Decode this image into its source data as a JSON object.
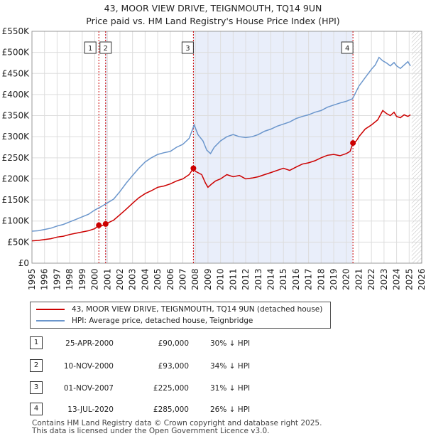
{
  "title": "43, MOOR VIEW DRIVE, TEIGNMOUTH, TQ14 9UN",
  "subtitle": "Price paid vs. HM Land Registry's House Price Index (HPI)",
  "colors": {
    "property": "#cc0000",
    "hpi": "#6b96cc",
    "shade": "#e9eefa",
    "marker_line": "#cc0000"
  },
  "chart_data": {
    "type": "line",
    "x_range": [
      1995,
      2026
    ],
    "y_range": [
      0,
      550000
    ],
    "y_ticks": [
      0,
      50000,
      100000,
      150000,
      200000,
      250000,
      300000,
      350000,
      400000,
      450000,
      500000,
      550000
    ],
    "y_tick_labels": [
      "£0",
      "£50K",
      "£100K",
      "£150K",
      "£200K",
      "£250K",
      "£300K",
      "£350K",
      "£400K",
      "£450K",
      "£500K",
      "£550K"
    ],
    "x_ticks": [
      1995,
      1996,
      1997,
      1998,
      1999,
      2000,
      2001,
      2002,
      2003,
      2004,
      2005,
      2006,
      2007,
      2008,
      2009,
      2010,
      2011,
      2012,
      2013,
      2014,
      2015,
      2016,
      2017,
      2018,
      2019,
      2020,
      2021,
      2022,
      2023,
      2024,
      2025,
      2026
    ],
    "grid": true,
    "shaded_periods": [
      [
        2000.83,
        2001.0
      ],
      [
        2007.83,
        2020.5
      ]
    ],
    "future_hatch_from": 2025.2,
    "series": [
      {
        "name": "43, MOOR VIEW DRIVE, TEIGNMOUTH, TQ14 9UN (detached house)",
        "color": "#cc0000",
        "x": [
          1995.0,
          1995.5,
          1996.0,
          1996.5,
          1997.0,
          1997.5,
          1998.0,
          1998.5,
          1999.0,
          1999.5,
          2000.0,
          2000.32,
          2000.5,
          2000.86,
          2001.0,
          2001.5,
          2002.0,
          2002.5,
          2003.0,
          2003.5,
          2004.0,
          2004.5,
          2005.0,
          2005.5,
          2006.0,
          2006.5,
          2007.0,
          2007.5,
          2007.84,
          2008.0,
          2008.5,
          2008.8,
          2009.0,
          2009.3,
          2009.6,
          2010.0,
          2010.5,
          2011.0,
          2011.5,
          2012.0,
          2012.5,
          2013.0,
          2013.5,
          2014.0,
          2014.5,
          2015.0,
          2015.5,
          2016.0,
          2016.5,
          2017.0,
          2017.5,
          2018.0,
          2018.5,
          2019.0,
          2019.5,
          2020.0,
          2020.3,
          2020.53,
          2020.8,
          2021.0,
          2021.5,
          2022.0,
          2022.5,
          2022.9,
          2023.2,
          2023.5,
          2023.8,
          2024.0,
          2024.3,
          2024.6,
          2024.9,
          2025.1
        ],
        "values": [
          53000,
          54000,
          56000,
          58000,
          62000,
          64000,
          68000,
          71000,
          74000,
          77000,
          82000,
          90000,
          88000,
          93000,
          95000,
          102000,
          115000,
          128000,
          142000,
          155000,
          165000,
          172000,
          180000,
          183000,
          188000,
          195000,
          200000,
          210000,
          225000,
          218000,
          210000,
          190000,
          180000,
          188000,
          195000,
          200000,
          210000,
          205000,
          208000,
          200000,
          202000,
          205000,
          210000,
          215000,
          220000,
          225000,
          220000,
          228000,
          235000,
          238000,
          243000,
          250000,
          256000,
          258000,
          255000,
          260000,
          265000,
          285000,
          290000,
          300000,
          318000,
          328000,
          340000,
          362000,
          355000,
          350000,
          358000,
          348000,
          345000,
          352000,
          348000,
          352000
        ]
      },
      {
        "name": "HPI: Average price, detached house, Teignbridge",
        "color": "#6b96cc",
        "x": [
          1995.0,
          1995.5,
          1996.0,
          1996.5,
          1997.0,
          1997.5,
          1998.0,
          1998.5,
          1999.0,
          1999.5,
          2000.0,
          2000.5,
          2001.0,
          2001.5,
          2002.0,
          2002.5,
          2003.0,
          2003.5,
          2004.0,
          2004.5,
          2005.0,
          2005.5,
          2006.0,
          2006.5,
          2007.0,
          2007.5,
          2007.9,
          2008.2,
          2008.6,
          2008.9,
          2009.2,
          2009.5,
          2010.0,
          2010.5,
          2011.0,
          2011.5,
          2012.0,
          2012.5,
          2013.0,
          2013.5,
          2014.0,
          2014.5,
          2015.0,
          2015.5,
          2016.0,
          2016.5,
          2017.0,
          2017.5,
          2018.0,
          2018.5,
          2019.0,
          2019.5,
          2020.0,
          2020.5,
          2021.0,
          2021.5,
          2022.0,
          2022.3,
          2022.6,
          2022.9,
          2023.2,
          2023.5,
          2023.8,
          2024.0,
          2024.3,
          2024.6,
          2024.9,
          2025.1
        ],
        "values": [
          76000,
          77000,
          80000,
          83000,
          88000,
          92000,
          98000,
          104000,
          110000,
          116000,
          126000,
          134000,
          143000,
          152000,
          170000,
          190000,
          208000,
          225000,
          240000,
          250000,
          258000,
          262000,
          265000,
          275000,
          282000,
          296000,
          328000,
          305000,
          290000,
          268000,
          260000,
          275000,
          290000,
          300000,
          305000,
          300000,
          298000,
          300000,
          305000,
          313000,
          318000,
          325000,
          330000,
          335000,
          343000,
          348000,
          352000,
          358000,
          362000,
          370000,
          375000,
          380000,
          384000,
          390000,
          420000,
          440000,
          460000,
          470000,
          488000,
          480000,
          475000,
          468000,
          476000,
          468000,
          462000,
          470000,
          478000,
          468000
        ]
      }
    ],
    "transactions": [
      {
        "id": "1",
        "x": 2000.32,
        "y": 90000
      },
      {
        "id": "2",
        "x": 2000.86,
        "y": 93000
      },
      {
        "id": "3",
        "x": 2007.84,
        "y": 225000
      },
      {
        "id": "4",
        "x": 2020.53,
        "y": 285000
      }
    ]
  },
  "legend": {
    "property_label": "43, MOOR VIEW DRIVE, TEIGNMOUTH, TQ14 9UN (detached house)",
    "hpi_label": "HPI: Average price, detached house, Teignbridge"
  },
  "table": [
    {
      "num": "1",
      "date": "25-APR-2000",
      "price": "£90,000",
      "hpi": "30% ↓ HPI"
    },
    {
      "num": "2",
      "date": "10-NOV-2000",
      "price": "£93,000",
      "hpi": "34% ↓ HPI"
    },
    {
      "num": "3",
      "date": "01-NOV-2007",
      "price": "£225,000",
      "hpi": "31% ↓ HPI"
    },
    {
      "num": "4",
      "date": "13-JUL-2020",
      "price": "£285,000",
      "hpi": "26% ↓ HPI"
    }
  ],
  "footer": {
    "line1": "Contains HM Land Registry data © Crown copyright and database right 2025.",
    "line2": "This data is licensed under the Open Government Licence v3.0."
  }
}
